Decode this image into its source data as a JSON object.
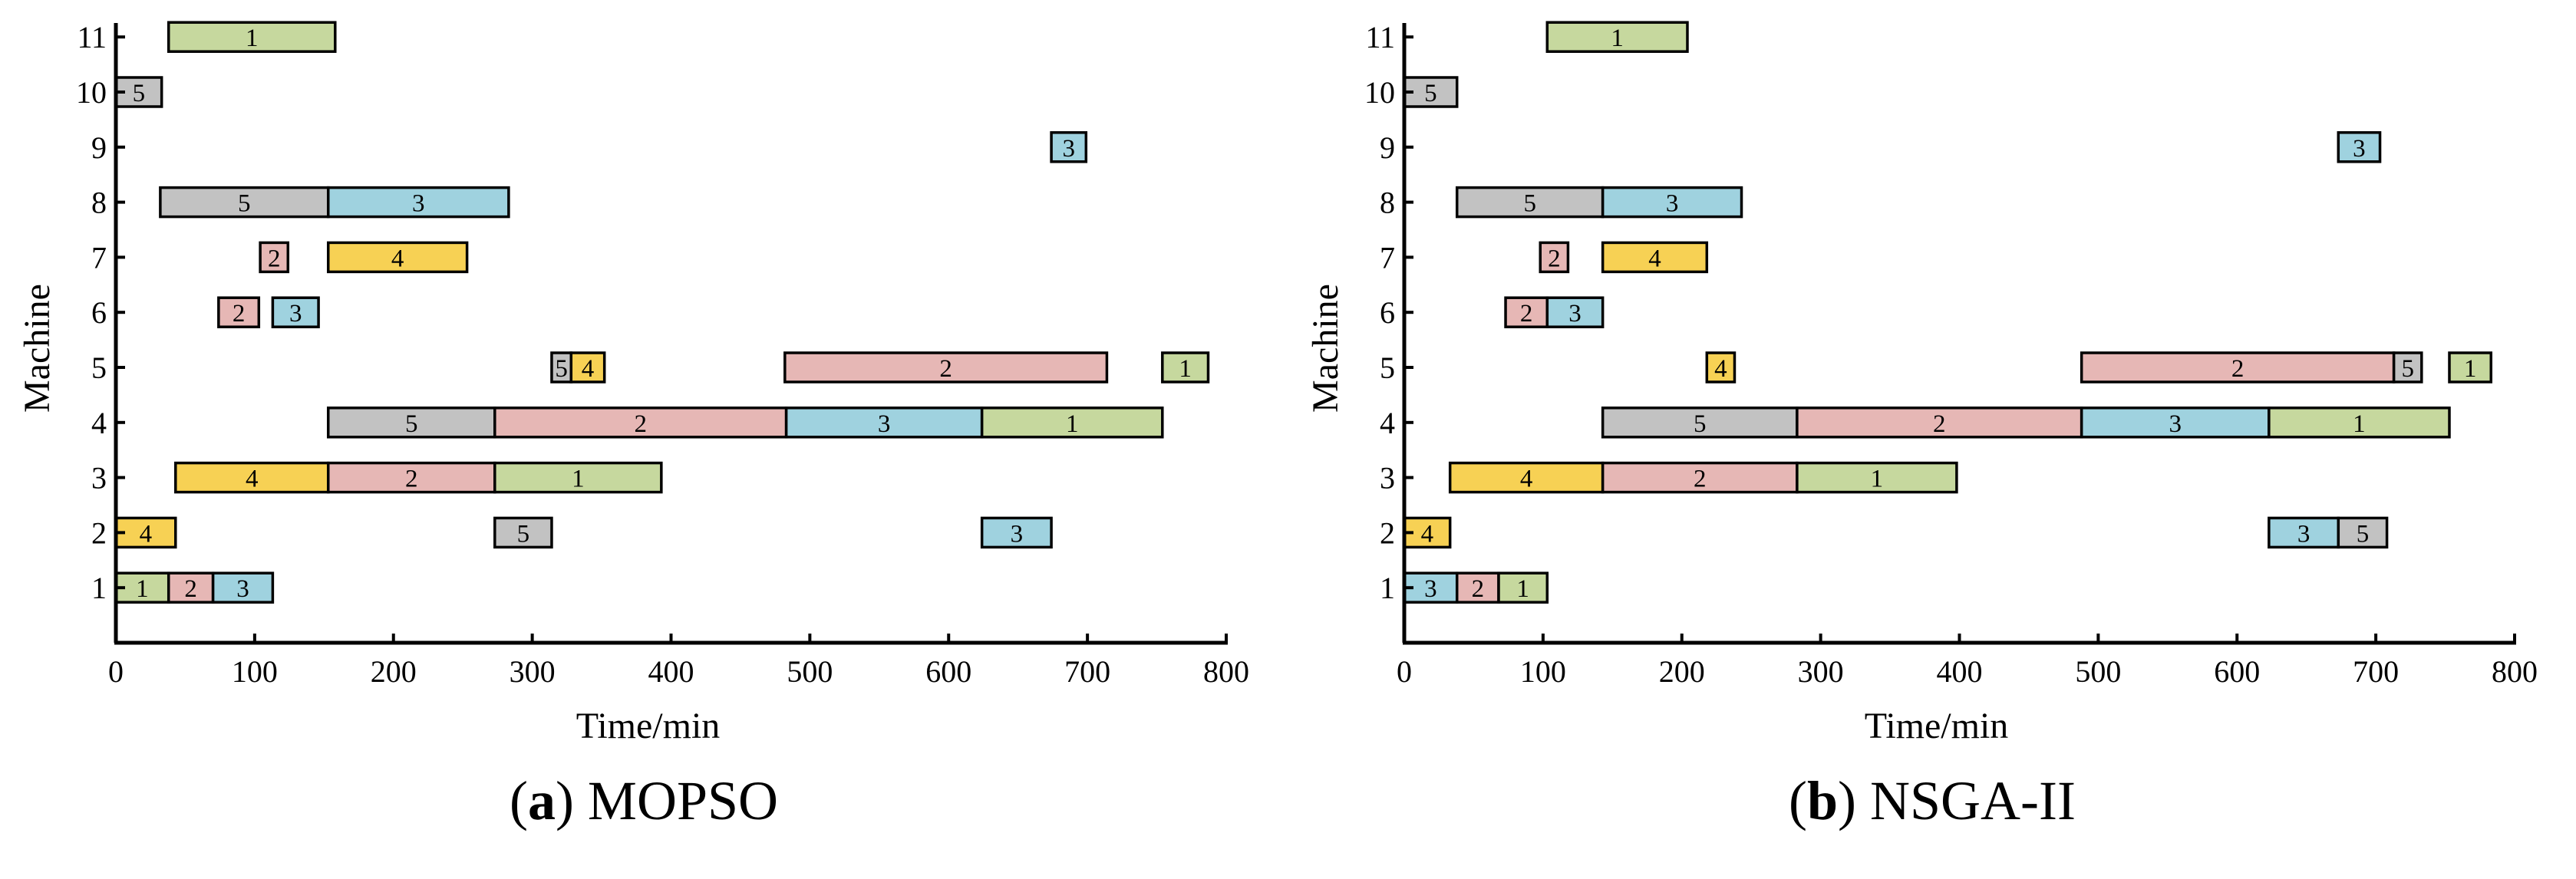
{
  "figure": {
    "colors": {
      "1": "#c6d89e",
      "2": "#e6b7b5",
      "3": "#9fd2df",
      "4": "#f7d154",
      "5": "#c2c2c2"
    }
  },
  "chart_data": [
    {
      "type": "gantt",
      "caption": {
        "label": "a",
        "text": "MOPSO"
      },
      "xlabel": "Time/min",
      "ylabel": "Machine",
      "xlim": [
        0,
        800
      ],
      "ylim": [
        0,
        11
      ],
      "xticks": [
        "0",
        "100",
        "200",
        "300",
        "400",
        "500",
        "600",
        "700",
        "800"
      ],
      "yticks": [
        "1",
        "2",
        "3",
        "4",
        "5",
        "6",
        "7",
        "8",
        "9",
        "10",
        "11"
      ],
      "tasks": [
        {
          "machine": 11,
          "job": "1",
          "start": 38,
          "end": 158
        },
        {
          "machine": 10,
          "job": "5",
          "start": 0,
          "end": 33
        },
        {
          "machine": 9,
          "job": "3",
          "start": 674,
          "end": 699
        },
        {
          "machine": 8,
          "job": "5",
          "start": 32,
          "end": 153
        },
        {
          "machine": 8,
          "job": "3",
          "start": 153,
          "end": 283
        },
        {
          "machine": 7,
          "job": "2",
          "start": 104,
          "end": 124
        },
        {
          "machine": 7,
          "job": "4",
          "start": 153,
          "end": 253
        },
        {
          "machine": 6,
          "job": "2",
          "start": 74,
          "end": 103
        },
        {
          "machine": 6,
          "job": "3",
          "start": 113,
          "end": 146
        },
        {
          "machine": 5,
          "job": "5",
          "start": 314,
          "end": 328
        },
        {
          "machine": 5,
          "job": "4",
          "start": 328,
          "end": 352
        },
        {
          "machine": 5,
          "job": "2",
          "start": 482,
          "end": 714
        },
        {
          "machine": 5,
          "job": "1",
          "start": 754,
          "end": 787
        },
        {
          "machine": 4,
          "job": "5",
          "start": 153,
          "end": 273
        },
        {
          "machine": 4,
          "job": "2",
          "start": 273,
          "end": 483
        },
        {
          "machine": 4,
          "job": "3",
          "start": 483,
          "end": 624
        },
        {
          "machine": 4,
          "job": "1",
          "start": 624,
          "end": 754
        },
        {
          "machine": 3,
          "job": "4",
          "start": 43,
          "end": 153
        },
        {
          "machine": 3,
          "job": "2",
          "start": 153,
          "end": 273
        },
        {
          "machine": 3,
          "job": "1",
          "start": 273,
          "end": 393
        },
        {
          "machine": 2,
          "job": "4",
          "start": 0,
          "end": 43
        },
        {
          "machine": 2,
          "job": "5",
          "start": 273,
          "end": 314
        },
        {
          "machine": 2,
          "job": "3",
          "start": 624,
          "end": 674
        },
        {
          "machine": 1,
          "job": "1",
          "start": 0,
          "end": 38
        },
        {
          "machine": 1,
          "job": "2",
          "start": 38,
          "end": 70
        },
        {
          "machine": 1,
          "job": "3",
          "start": 70,
          "end": 113
        }
      ]
    },
    {
      "type": "gantt",
      "caption": {
        "label": "b",
        "text": "NSGA-II"
      },
      "xlabel": "Time/min",
      "ylabel": "Machine",
      "xlim": [
        0,
        800
      ],
      "ylim": [
        0,
        11
      ],
      "xticks": [
        "0",
        "100",
        "200",
        "300",
        "400",
        "500",
        "600",
        "700",
        "800"
      ],
      "yticks": [
        "1",
        "2",
        "3",
        "4",
        "5",
        "6",
        "7",
        "8",
        "9",
        "10",
        "11"
      ],
      "tasks": [
        {
          "machine": 11,
          "job": "1",
          "start": 103,
          "end": 204
        },
        {
          "machine": 10,
          "job": "5",
          "start": 0,
          "end": 38
        },
        {
          "machine": 9,
          "job": "3",
          "start": 673,
          "end": 703
        },
        {
          "machine": 8,
          "job": "5",
          "start": 38,
          "end": 143
        },
        {
          "machine": 8,
          "job": "3",
          "start": 143,
          "end": 243
        },
        {
          "machine": 7,
          "job": "2",
          "start": 98,
          "end": 118
        },
        {
          "machine": 7,
          "job": "4",
          "start": 143,
          "end": 218
        },
        {
          "machine": 6,
          "job": "2",
          "start": 73,
          "end": 103
        },
        {
          "machine": 6,
          "job": "3",
          "start": 103,
          "end": 143
        },
        {
          "machine": 5,
          "job": "4",
          "start": 218,
          "end": 238
        },
        {
          "machine": 5,
          "job": "2",
          "start": 488,
          "end": 713
        },
        {
          "machine": 5,
          "job": "5",
          "start": 713,
          "end": 733
        },
        {
          "machine": 5,
          "job": "1",
          "start": 753,
          "end": 783
        },
        {
          "machine": 4,
          "job": "5",
          "start": 143,
          "end": 283
        },
        {
          "machine": 4,
          "job": "2",
          "start": 283,
          "end": 488
        },
        {
          "machine": 4,
          "job": "3",
          "start": 488,
          "end": 623
        },
        {
          "machine": 4,
          "job": "1",
          "start": 623,
          "end": 753
        },
        {
          "machine": 3,
          "job": "4",
          "start": 33,
          "end": 143
        },
        {
          "machine": 3,
          "job": "2",
          "start": 143,
          "end": 283
        },
        {
          "machine": 3,
          "job": "1",
          "start": 283,
          "end": 398
        },
        {
          "machine": 2,
          "job": "4",
          "start": 0,
          "end": 33
        },
        {
          "machine": 2,
          "job": "3",
          "start": 623,
          "end": 673
        },
        {
          "machine": 2,
          "job": "5",
          "start": 673,
          "end": 708
        },
        {
          "machine": 1,
          "job": "3",
          "start": 0,
          "end": 38
        },
        {
          "machine": 1,
          "job": "2",
          "start": 38,
          "end": 68
        },
        {
          "machine": 1,
          "job": "1",
          "start": 68,
          "end": 103
        }
      ]
    }
  ]
}
